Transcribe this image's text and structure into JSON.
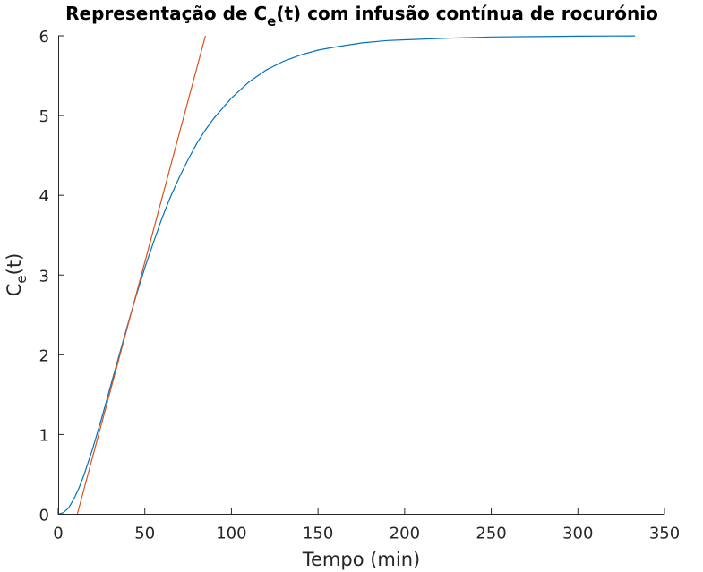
{
  "chart_data": {
    "type": "line",
    "title": {
      "prefix": "Representação de C",
      "subscript": "e",
      "suffix": "(t) com infusão contínua de rocurónio"
    },
    "xlabel": "Tempo (min)",
    "ylabel": {
      "main": "C",
      "subscript": "e",
      "suffix": "(t)"
    },
    "xlim": [
      0,
      350
    ],
    "ylim": [
      0,
      6
    ],
    "xticks": [
      0,
      50,
      100,
      150,
      200,
      250,
      300,
      350
    ],
    "yticks": [
      0,
      1,
      2,
      3,
      4,
      5,
      6
    ],
    "grid": false,
    "box": false,
    "series": [
      {
        "color": "#0072BD",
        "x": [
          0,
          3,
          6,
          9,
          12,
          15,
          20,
          25,
          30,
          35,
          40,
          45,
          50,
          55,
          60,
          65,
          70,
          75,
          80,
          85,
          90,
          100,
          110,
          120,
          130,
          140,
          150,
          160,
          175,
          190,
          200,
          225,
          250,
          275,
          300,
          320,
          333
        ],
        "y": [
          0,
          0.02,
          0.08,
          0.19,
          0.33,
          0.5,
          0.83,
          1.2,
          1.59,
          1.98,
          2.37,
          2.74,
          3.09,
          3.41,
          3.72,
          3.99,
          4.23,
          4.45,
          4.65,
          4.82,
          4.97,
          5.22,
          5.42,
          5.57,
          5.68,
          5.76,
          5.82,
          5.86,
          5.91,
          5.94,
          5.95,
          5.97,
          5.985,
          5.99,
          5.995,
          5.998,
          5.999
        ]
      },
      {
        "color": "#D95319",
        "x": [
          11,
          85
        ],
        "y": [
          0,
          6
        ]
      }
    ]
  }
}
